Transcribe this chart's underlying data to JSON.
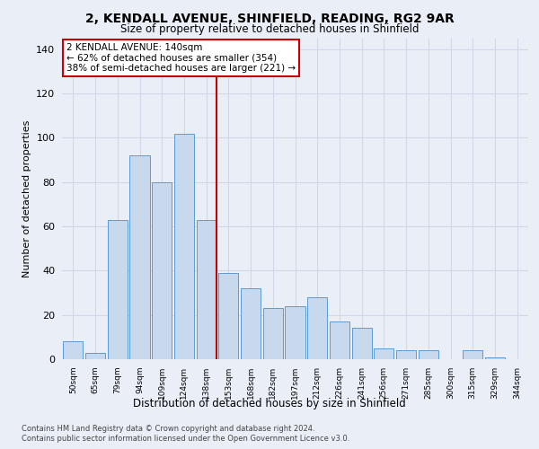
{
  "title_line1": "2, KENDALL AVENUE, SHINFIELD, READING, RG2 9AR",
  "title_line2": "Size of property relative to detached houses in Shinfield",
  "xlabel": "Distribution of detached houses by size in Shinfield",
  "ylabel": "Number of detached properties",
  "bar_labels": [
    "50sqm",
    "65sqm",
    "79sqm",
    "94sqm",
    "109sqm",
    "124sqm",
    "138sqm",
    "153sqm",
    "168sqm",
    "182sqm",
    "197sqm",
    "212sqm",
    "226sqm",
    "241sqm",
    "256sqm",
    "271sqm",
    "285sqm",
    "300sqm",
    "315sqm",
    "329sqm",
    "344sqm"
  ],
  "bar_values": [
    8,
    3,
    63,
    92,
    80,
    102,
    63,
    39,
    32,
    23,
    24,
    28,
    17,
    14,
    5,
    4,
    4,
    0,
    4,
    1,
    0
  ],
  "bar_color": "#c9d9ed",
  "bar_edge_color": "#5b9bd5",
  "annotation_title": "2 KENDALL AVENUE: 140sqm",
  "annotation_line2": "← 62% of detached houses are smaller (354)",
  "annotation_line3": "38% of semi-detached houses are larger (221) →",
  "annotation_box_color": "#ffffff",
  "annotation_box_edge": "#cc0000",
  "vline_color": "#cc0000",
  "ylim": [
    0,
    145
  ],
  "yticks": [
    0,
    20,
    40,
    60,
    80,
    100,
    120,
    140
  ],
  "grid_color": "#d0d8e8",
  "footer1": "Contains HM Land Registry data © Crown copyright and database right 2024.",
  "footer2": "Contains public sector information licensed under the Open Government Licence v3.0.",
  "bg_color": "#eaeff7",
  "plot_bg_color": "#eaeff7",
  "vline_bar_index": 6
}
